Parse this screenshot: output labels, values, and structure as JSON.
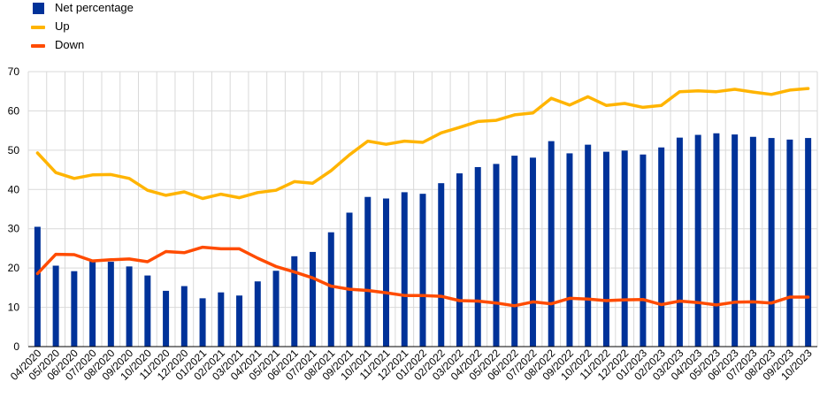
{
  "chart_data": {
    "type": "bar",
    "categories": [
      "04/2020",
      "05/2020",
      "06/2020",
      "07/2020",
      "08/2020",
      "09/2020",
      "10/2020",
      "11/2020",
      "12/2020",
      "01/2021",
      "02/2021",
      "03/2021",
      "04/2021",
      "05/2021",
      "06/2021",
      "07/2021",
      "08/2021",
      "09/2021",
      "10/2021",
      "11/2021",
      "12/2021",
      "01/2022",
      "02/2022",
      "03/2022",
      "04/2022",
      "05/2022",
      "06/2022",
      "07/2022",
      "08/2022",
      "09/2022",
      "10/2022",
      "11/2022",
      "12/2022",
      "01/2023",
      "02/2023",
      "03/2023",
      "04/2023",
      "05/2023",
      "06/2023",
      "07/2023",
      "08/2023",
      "09/2023",
      "10/2023"
    ],
    "series": [
      {
        "name": "Net percentage",
        "kind": "bar",
        "color": "#003299",
        "values": [
          30.5,
          20.6,
          19.2,
          22.0,
          21.6,
          20.4,
          18.1,
          14.2,
          15.4,
          12.3,
          13.8,
          13.0,
          16.6,
          19.3,
          23.0,
          24.1,
          29.1,
          34.1,
          38.1,
          37.7,
          39.3,
          38.9,
          41.6,
          44.1,
          45.7,
          46.5,
          48.6,
          48.1,
          52.3,
          49.2,
          51.4,
          49.6,
          49.9,
          48.9,
          50.7,
          53.2,
          53.9,
          54.3,
          54.0,
          53.4,
          53.1,
          52.7,
          53.1
        ]
      },
      {
        "name": "Up",
        "kind": "line",
        "color": "#FFB400",
        "values": [
          49.3,
          44.3,
          42.8,
          43.7,
          43.8,
          42.8,
          39.8,
          38.5,
          39.4,
          37.7,
          38.8,
          37.9,
          39.2,
          39.8,
          42.0,
          41.6,
          44.8,
          48.8,
          52.3,
          51.5,
          52.3,
          52.0,
          54.4,
          55.8,
          57.3,
          57.6,
          59.0,
          59.5,
          63.2,
          61.5,
          63.6,
          61.4,
          61.9,
          60.9,
          61.4,
          64.9,
          65.1,
          64.9,
          65.5,
          64.8,
          64.2,
          65.3,
          65.7
        ]
      },
      {
        "name": "Down",
        "kind": "line",
        "color": "#FF4B00",
        "values": [
          18.6,
          23.5,
          23.4,
          21.8,
          22.1,
          22.3,
          21.6,
          24.2,
          23.9,
          25.3,
          24.9,
          24.9,
          22.5,
          20.4,
          19.0,
          17.5,
          15.4,
          14.6,
          14.3,
          13.7,
          13.0,
          13.0,
          12.8,
          11.7,
          11.6,
          11.1,
          10.4,
          11.4,
          10.9,
          12.3,
          12.1,
          11.7,
          11.9,
          12.0,
          10.7,
          11.6,
          11.2,
          10.6,
          11.3,
          11.4,
          11.1,
          12.6,
          12.6
        ]
      }
    ],
    "ylim": [
      0,
      70
    ],
    "yticks": [
      0,
      10,
      20,
      30,
      40,
      50,
      60,
      70
    ],
    "grid": true,
    "legend": "top-left"
  }
}
